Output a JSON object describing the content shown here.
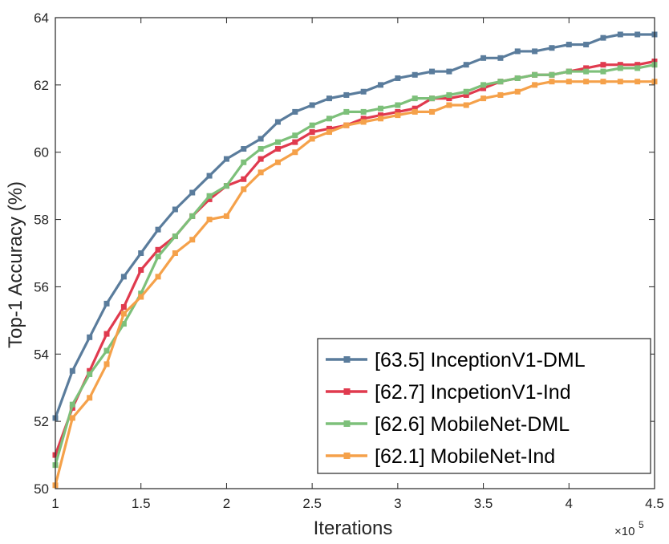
{
  "chart_data": {
    "type": "line",
    "xlabel": "Iterations",
    "ylabel": "Top-1 Accuracy (%)",
    "x_multiplier_label": "×10",
    "x_multiplier_exponent": "5",
    "xlim": [
      1,
      4.5
    ],
    "ylim": [
      50,
      64
    ],
    "xticks": [
      "1",
      "1.5",
      "2",
      "2.5",
      "3",
      "3.5",
      "4",
      "4.5"
    ],
    "yticks": [
      "50",
      "52",
      "54",
      "56",
      "58",
      "60",
      "62",
      "64"
    ],
    "legend_position": "bottom-right",
    "x": [
      1.0,
      1.1,
      1.2,
      1.3,
      1.4,
      1.5,
      1.6,
      1.7,
      1.8,
      1.9,
      2.0,
      2.1,
      2.2,
      2.3,
      2.4,
      2.5,
      2.6,
      2.7,
      2.8,
      2.9,
      3.0,
      3.1,
      3.2,
      3.3,
      3.4,
      3.5,
      3.6,
      3.7,
      3.8,
      3.9,
      4.0,
      4.1,
      4.2,
      4.3,
      4.4,
      4.5
    ],
    "series": [
      {
        "name": "[63.5] InceptionV1-DML",
        "color": "#5a7c9c",
        "values": [
          52.1,
          53.5,
          54.5,
          55.5,
          56.3,
          57.0,
          57.7,
          58.3,
          58.8,
          59.3,
          59.8,
          60.1,
          60.4,
          60.9,
          61.2,
          61.4,
          61.6,
          61.7,
          61.8,
          62.0,
          62.2,
          62.3,
          62.4,
          62.4,
          62.6,
          62.8,
          62.8,
          63.0,
          63.0,
          63.1,
          63.2,
          63.2,
          63.4,
          63.5,
          63.5,
          63.5
        ]
      },
      {
        "name": "[62.7] IncpetionV1-Ind",
        "color": "#e03a4e",
        "values": [
          51.0,
          52.4,
          53.5,
          54.6,
          55.4,
          56.5,
          57.1,
          57.5,
          58.1,
          58.6,
          59.0,
          59.2,
          59.8,
          60.1,
          60.3,
          60.6,
          60.7,
          60.8,
          61.0,
          61.1,
          61.2,
          61.3,
          61.6,
          61.6,
          61.7,
          61.9,
          62.1,
          62.2,
          62.3,
          62.3,
          62.4,
          62.5,
          62.6,
          62.6,
          62.6,
          62.7
        ]
      },
      {
        "name": "[62.6] MobileNet-DML",
        "color": "#7dc07a",
        "values": [
          50.7,
          52.5,
          53.4,
          54.1,
          54.9,
          55.8,
          56.9,
          57.5,
          58.1,
          58.7,
          59.0,
          59.7,
          60.1,
          60.3,
          60.5,
          60.8,
          61.0,
          61.2,
          61.2,
          61.3,
          61.4,
          61.6,
          61.6,
          61.7,
          61.8,
          62.0,
          62.1,
          62.2,
          62.3,
          62.3,
          62.4,
          62.4,
          62.4,
          62.5,
          62.5,
          62.6
        ]
      },
      {
        "name": "[62.1] MobileNet-Ind",
        "color": "#f5a14a",
        "values": [
          50.1,
          52.1,
          52.7,
          53.7,
          55.2,
          55.7,
          56.3,
          57.0,
          57.4,
          58.0,
          58.1,
          58.9,
          59.4,
          59.7,
          60.0,
          60.4,
          60.6,
          60.8,
          60.9,
          61.0,
          61.1,
          61.2,
          61.2,
          61.4,
          61.4,
          61.6,
          61.7,
          61.8,
          62.0,
          62.1,
          62.1,
          62.1,
          62.1,
          62.1,
          62.1,
          62.1
        ]
      }
    ]
  }
}
